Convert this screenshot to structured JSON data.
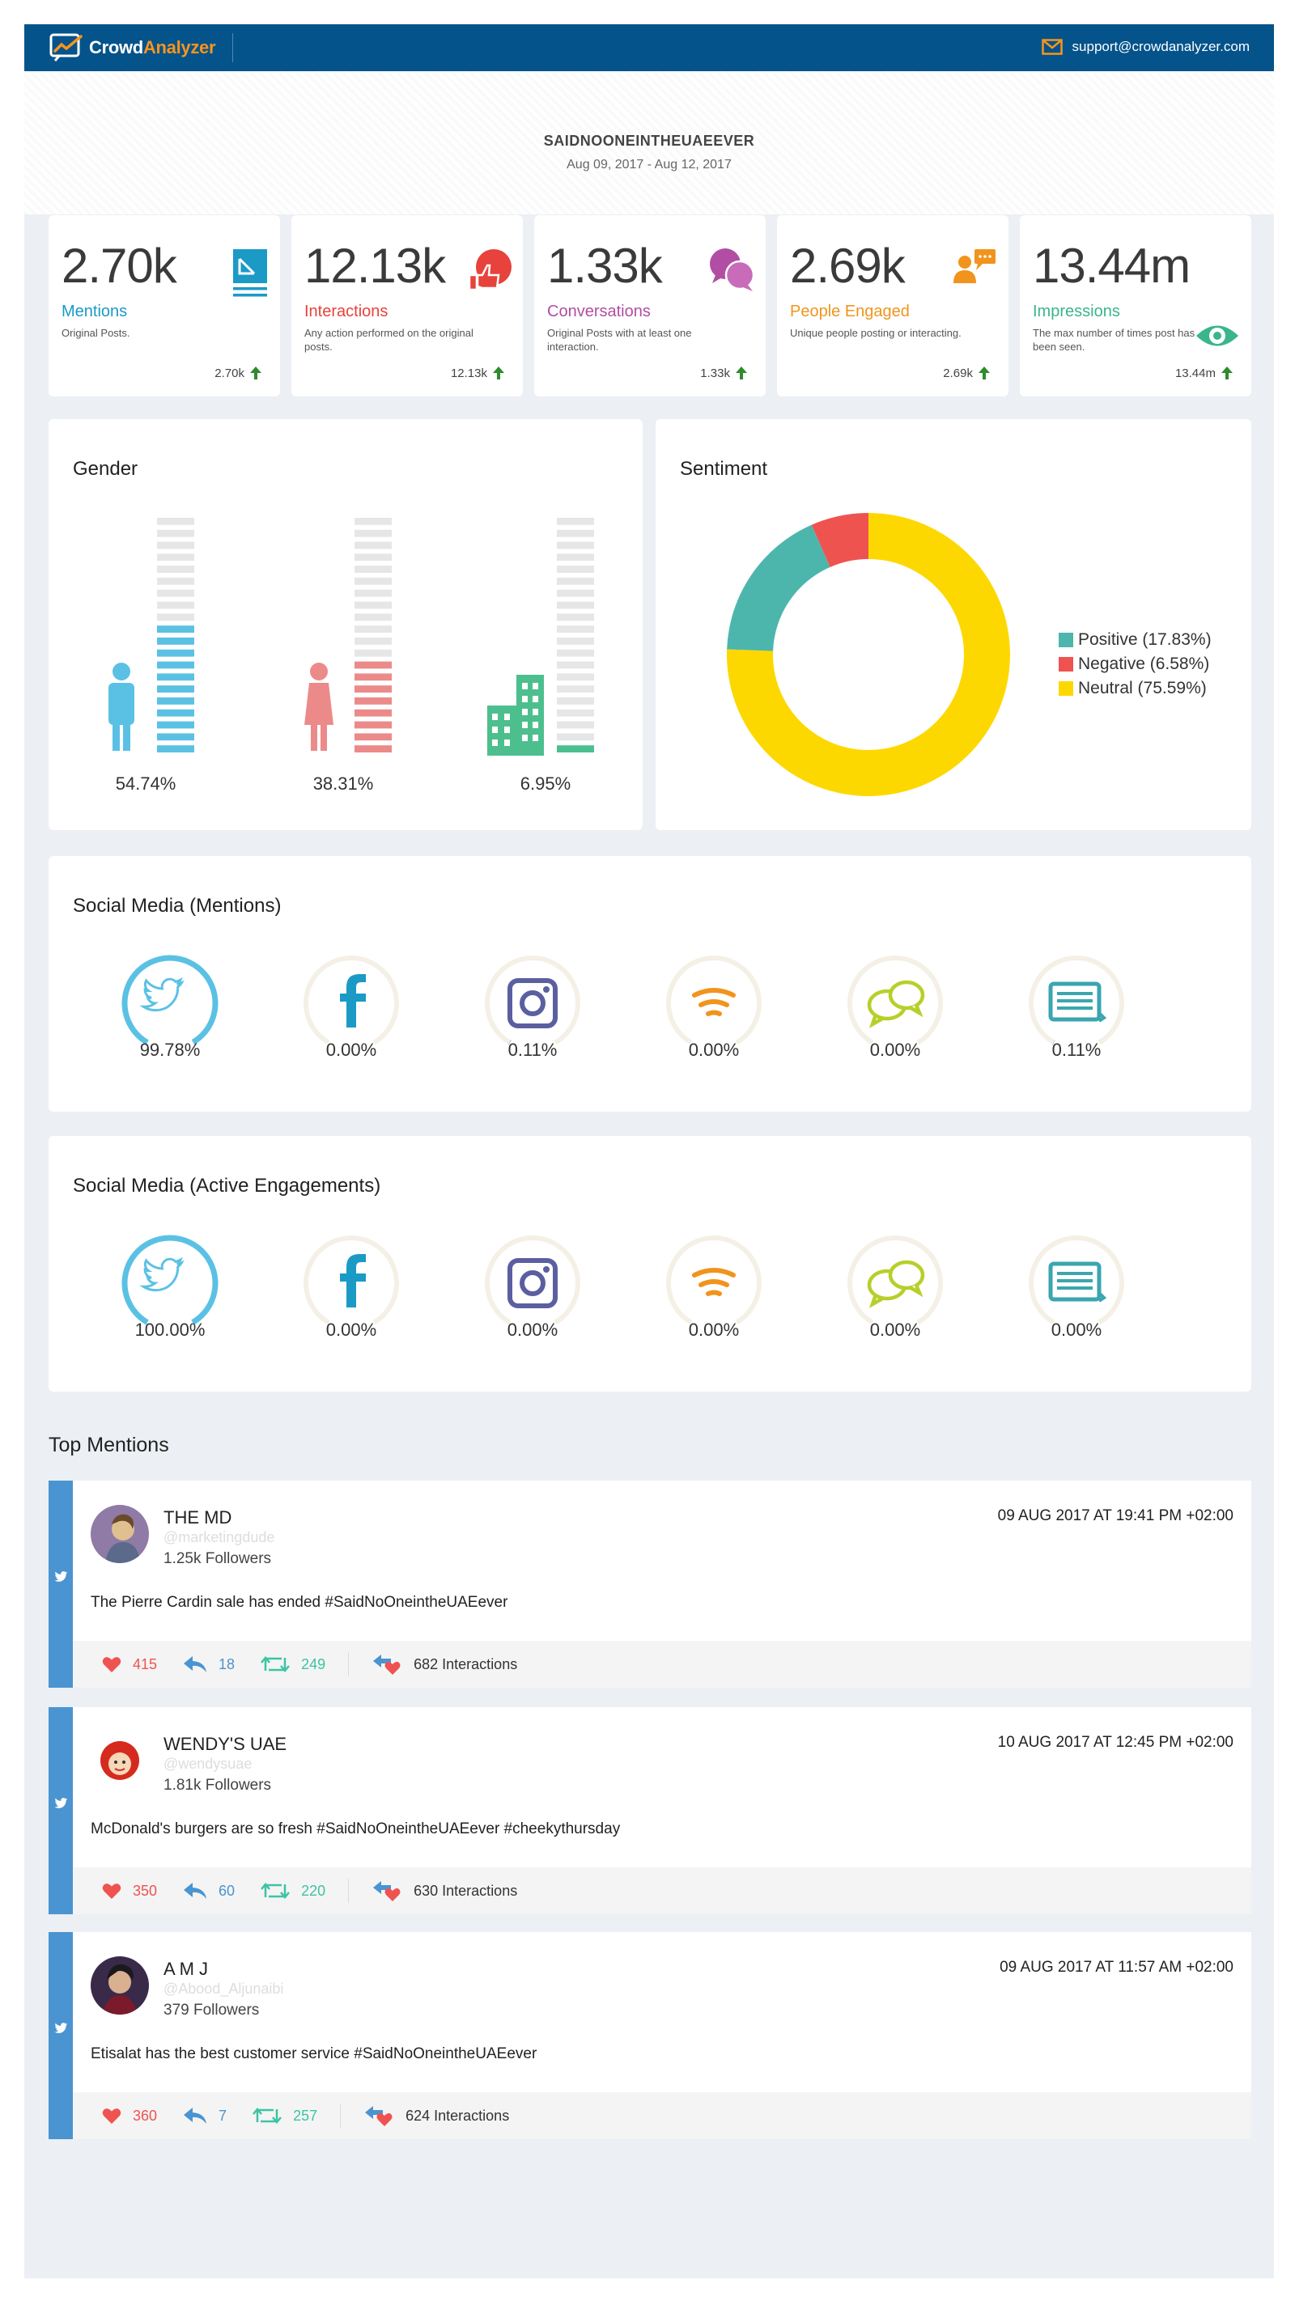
{
  "header": {
    "logo_word1": "Crowd",
    "logo_word2": "Analyzer",
    "support_email": "support@crowdanalyzer.com"
  },
  "report": {
    "title": "SAIDNOONEINTHEUAEEVER",
    "date_range": "Aug 09, 2017 - Aug 12, 2017"
  },
  "stats": [
    {
      "value": "2.70k",
      "label": "Mentions",
      "desc": "Original Posts.",
      "foot": "2.70k",
      "color": "#1b9ac6",
      "icon": "document-icon"
    },
    {
      "value": "12.13k",
      "label": "Interactions",
      "desc": "Any action performed on the original posts.",
      "foot": "12.13k",
      "color": "#e8423c",
      "icon": "like-bubble-icon"
    },
    {
      "value": "1.33k",
      "label": "Conversations",
      "desc": "Original Posts with at least one interaction.",
      "foot": "1.33k",
      "color": "#b14ea3",
      "icon": "chat-bubbles-icon"
    },
    {
      "value": "2.69k",
      "label": "People Engaged",
      "desc": "Unique people posting or interacting.",
      "foot": "2.69k",
      "color": "#f0941d",
      "icon": "person-chat-icon"
    },
    {
      "value": "13.44m",
      "label": "Impressions",
      "desc": "The max number of times post has been seen.",
      "foot": "13.44m",
      "color": "#3ab58e",
      "icon": "eye-icon"
    }
  ],
  "gender": {
    "title": "Gender",
    "items": [
      {
        "pct_label": "54.74%",
        "pct": 54.74,
        "color": "#5bc1e4",
        "icon": "male-icon"
      },
      {
        "pct_label": "38.31%",
        "pct": 38.31,
        "color": "#ec8a8a",
        "icon": "female-icon"
      },
      {
        "pct_label": "6.95%",
        "pct": 6.95,
        "color": "#4dbf8f",
        "icon": "building-icon"
      }
    ]
  },
  "sentiment": {
    "title": "Sentiment",
    "chart_data": {
      "type": "pie",
      "categories": [
        "Positive",
        "Negative",
        "Neutral"
      ],
      "values": [
        17.83,
        6.58,
        75.59
      ],
      "colors": [
        "#4db6ac",
        "#ef5350",
        "#fdd800"
      ],
      "legend": [
        "Positive (17.83%)",
        "Negative (6.58%)",
        "Neutral (75.59%)"
      ],
      "legend_position": "right"
    }
  },
  "social_mentions": {
    "title": "Social Media (Mentions)",
    "items": [
      {
        "network": "twitter-icon",
        "pct_label": "99.78%",
        "pct": 99.78
      },
      {
        "network": "facebook-icon",
        "pct_label": "0.00%",
        "pct": 0
      },
      {
        "network": "instagram-icon",
        "pct_label": "0.11%",
        "pct": 0.11
      },
      {
        "network": "rss-icon",
        "pct_label": "0.00%",
        "pct": 0
      },
      {
        "network": "forum-icon",
        "pct_label": "0.00%",
        "pct": 0
      },
      {
        "network": "news-icon",
        "pct_label": "0.11%",
        "pct": 0.11
      }
    ]
  },
  "social_engagements": {
    "title": "Social Media (Active Engagements)",
    "items": [
      {
        "network": "twitter-icon",
        "pct_label": "100.00%",
        "pct": 100
      },
      {
        "network": "facebook-icon",
        "pct_label": "0.00%",
        "pct": 0
      },
      {
        "network": "instagram-icon",
        "pct_label": "0.00%",
        "pct": 0
      },
      {
        "network": "rss-icon",
        "pct_label": "0.00%",
        "pct": 0
      },
      {
        "network": "forum-icon",
        "pct_label": "0.00%",
        "pct": 0
      },
      {
        "network": "news-icon",
        "pct_label": "0.00%",
        "pct": 0
      }
    ]
  },
  "top_mentions": {
    "title": "Top Mentions",
    "items": [
      {
        "name": "THE MD",
        "handle": "@marketingdude",
        "followers": "1.25k Followers",
        "date": "09 AUG 2017 AT 19:41 PM +02:00",
        "text": "The Pierre Cardin sale has ended #SaidNoOneintheUAEever",
        "likes": "415",
        "replies": "18",
        "retweets": "249",
        "interactions": "682 Interactions"
      },
      {
        "name": "WENDY'S UAE",
        "handle": "@wendysuae",
        "followers": "1.81k Followers",
        "date": "10 AUG 2017 AT 12:45 PM +02:00",
        "text": "McDonald's burgers are so fresh #SaidNoOneintheUAEever #cheekythursday",
        "likes": "350",
        "replies": "60",
        "retweets": "220",
        "interactions": "630 Interactions"
      },
      {
        "name": "A M J",
        "handle": "@Abood_Aljunaibi",
        "followers": "379 Followers",
        "date": "09 AUG 2017 AT 11:57 AM +02:00",
        "text": "Etisalat has the best customer service #SaidNoOneintheUAEever",
        "likes": "360",
        "replies": "7",
        "retweets": "257",
        "interactions": "624 Interactions"
      }
    ]
  }
}
